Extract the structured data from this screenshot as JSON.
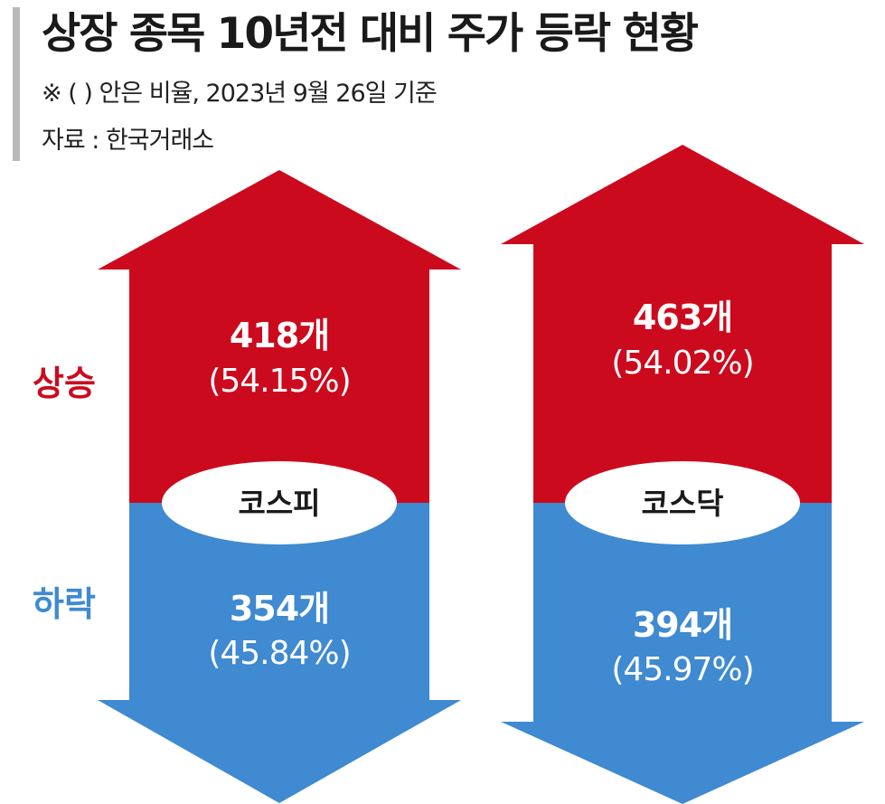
{
  "header": {
    "title": "상장 종목 10년전 대비 주가 등락 현황",
    "note": "※ (  ) 안은 비율, 2023년 9월 26일 기준",
    "source": "자료 : 한국거래소"
  },
  "colors": {
    "up": "#cc0a1e",
    "down": "#3f8ad0",
    "text_on_bar": "#ffffff",
    "ellipse": "#ffffff",
    "ellipse_text": "#1a1a1a"
  },
  "chart_data": {
    "type": "bar",
    "categories": [
      "코스피",
      "코스닥"
    ],
    "row_labels": {
      "up": "상승",
      "down": "하락"
    },
    "series": [
      {
        "name": "상승",
        "values": [
          418,
          463
        ],
        "value_labels": [
          "418개",
          "463개"
        ],
        "percent_labels": [
          "(54.15%)",
          "(54.02%)"
        ],
        "percents": [
          54.15,
          54.02
        ]
      },
      {
        "name": "하락",
        "values": [
          354,
          394
        ],
        "value_labels": [
          "354개",
          "394개"
        ],
        "percent_labels": [
          "(45.84%)",
          "(45.97%)"
        ],
        "percents": [
          45.84,
          45.97
        ]
      }
    ],
    "unit": "개"
  }
}
